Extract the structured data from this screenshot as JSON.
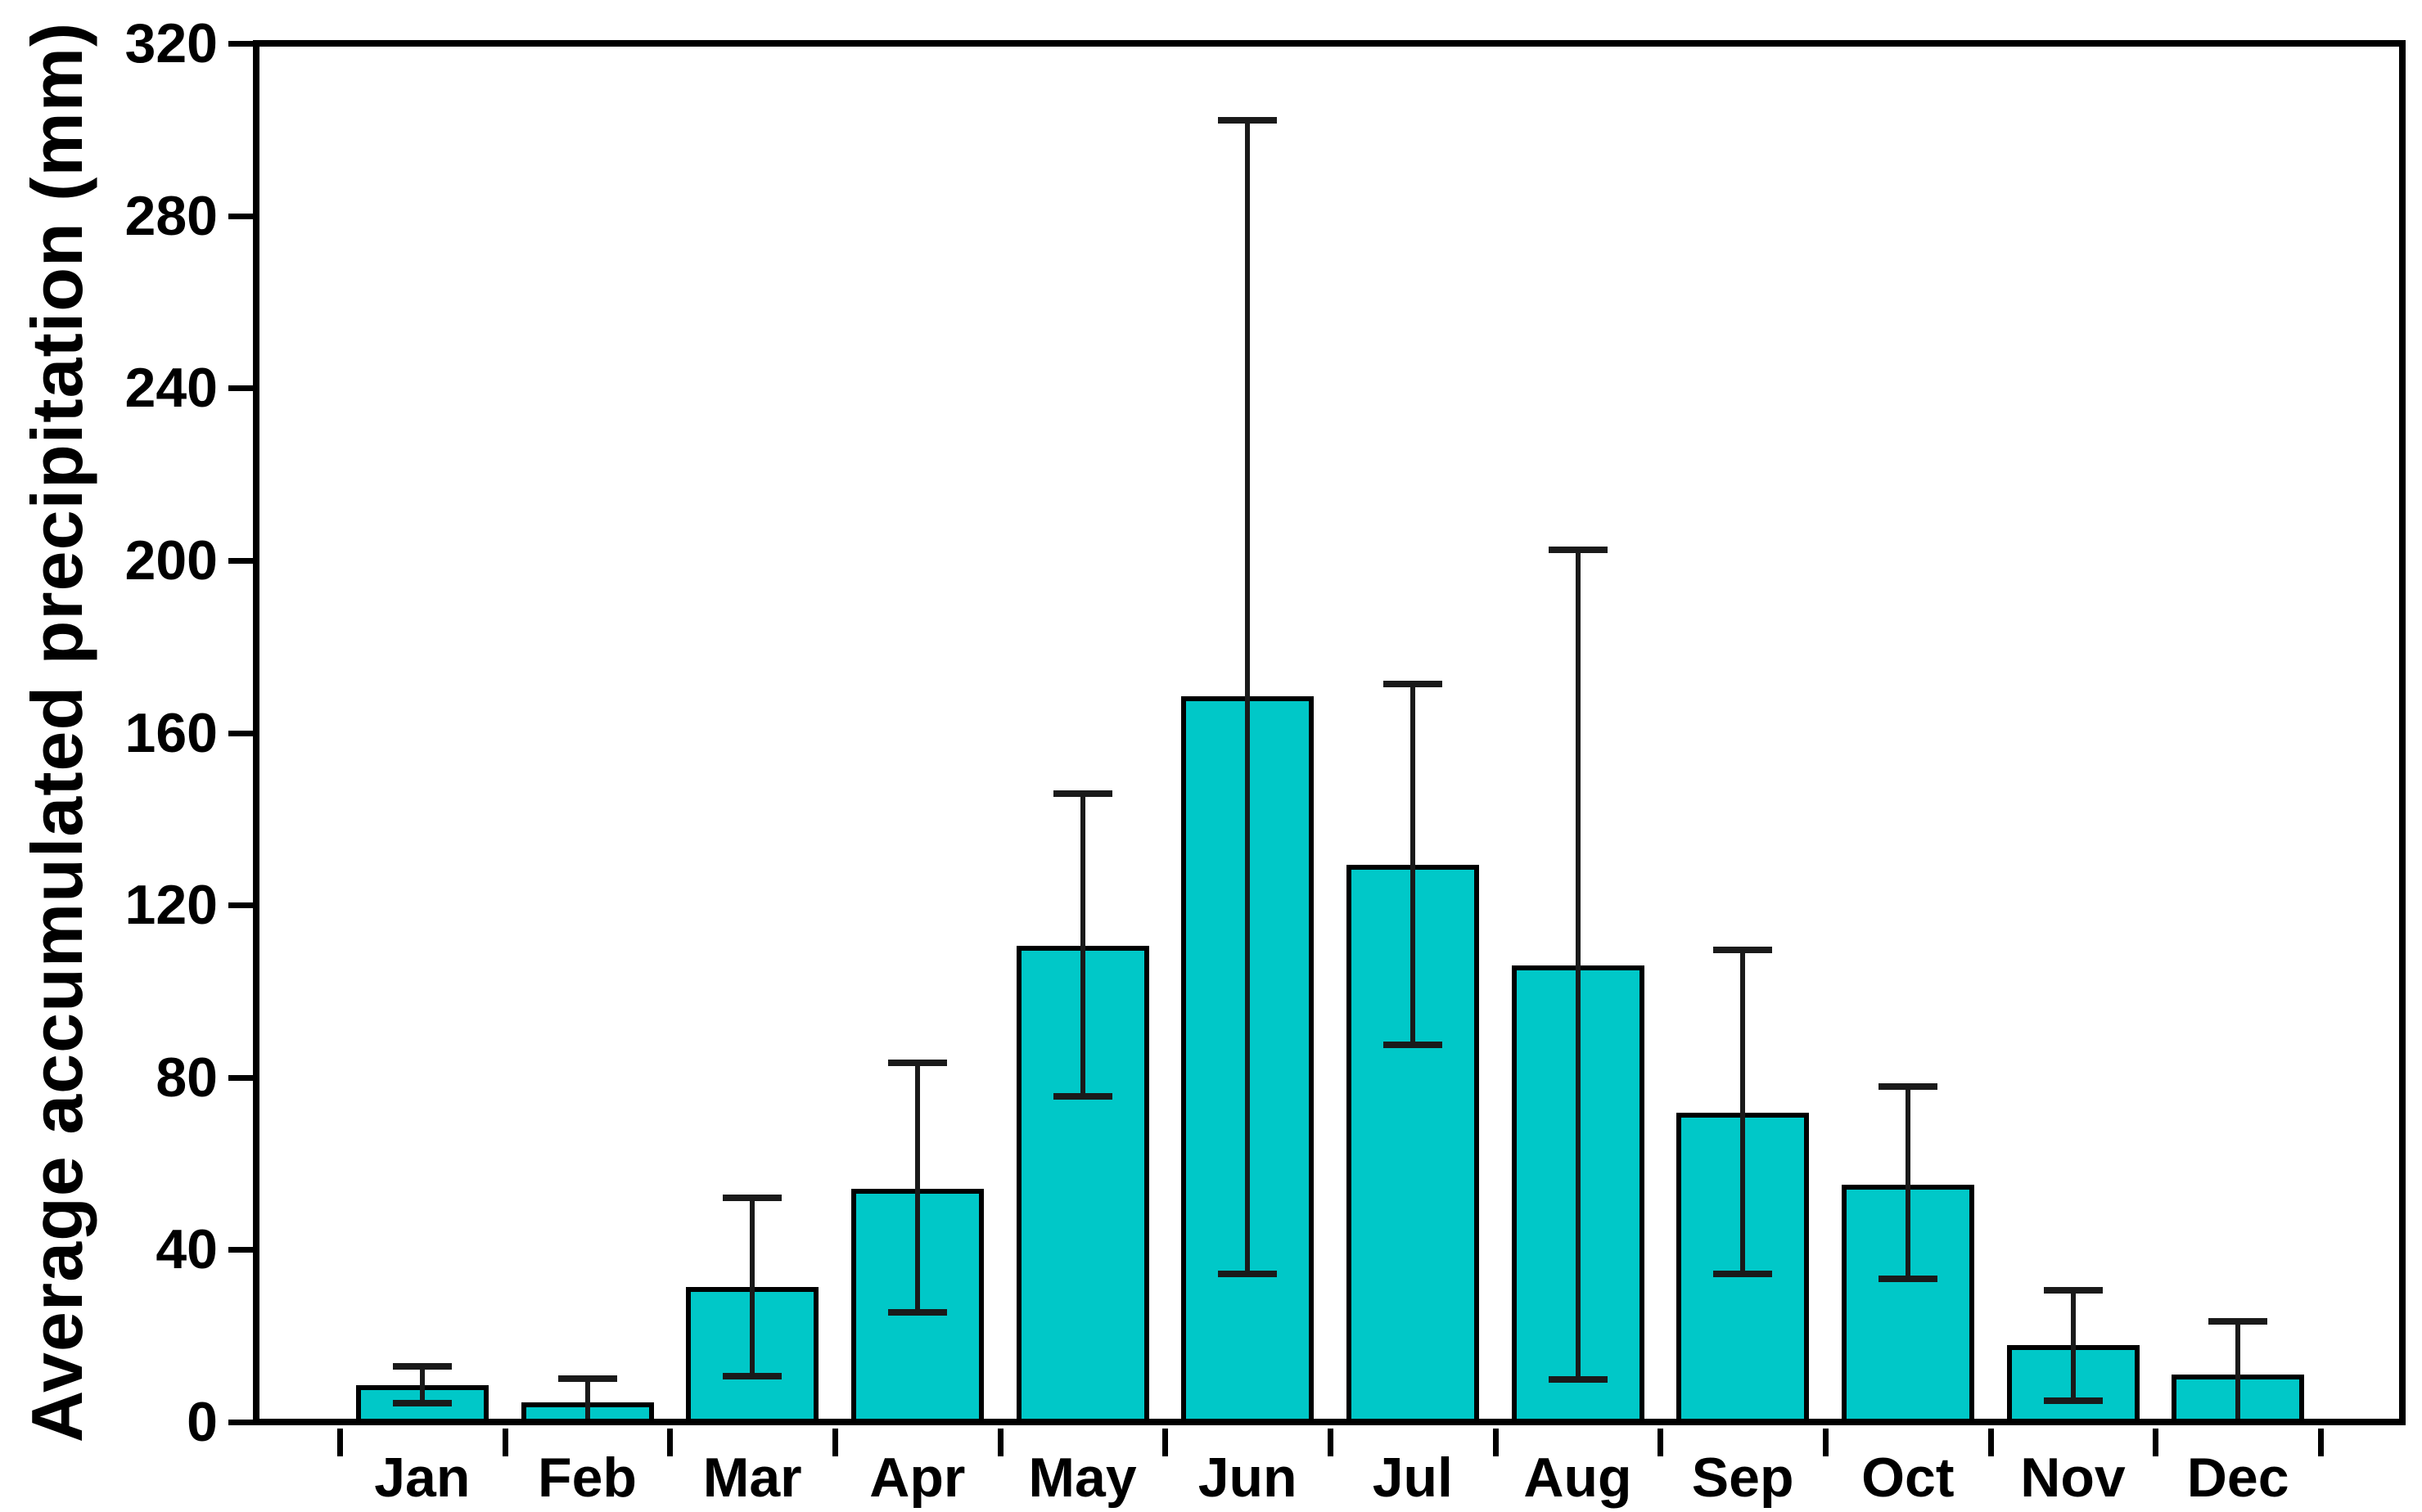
{
  "figure": {
    "background": "#ffffff",
    "text_color": "#000000"
  },
  "chart_data": {
    "type": "bar",
    "title": "",
    "xlabel": "",
    "ylabel": "Average accumulated precipitation (mm)",
    "categories": [
      "Jan",
      "Feb",
      "Mar",
      "Apr",
      "May",
      "Jun",
      "Jul",
      "Aug",
      "Sep",
      "Oct",
      "Nov",
      "Dec"
    ],
    "values": [
      8.5,
      4.6,
      31.3,
      54.1,
      110.5,
      168.4,
      129.3,
      106.0,
      71.8,
      55.1,
      17.9,
      11.0
    ],
    "error_bars": {
      "whisker_top": [
        12.9,
        10.1,
        52.0,
        83.4,
        145.9,
        302.2,
        171.3,
        202.4,
        109.6,
        77.9,
        30.6,
        23.4
      ],
      "whisker_bottom": [
        4.4,
        0.2,
        10.6,
        25.4,
        75.6,
        34.4,
        87.5,
        9.9,
        34.4,
        33.2,
        4.9,
        0.2
      ],
      "bottom_cap_visible": [
        true,
        false,
        true,
        true,
        true,
        true,
        true,
        true,
        true,
        true,
        true,
        false
      ]
    },
    "ylim": [
      0,
      320
    ],
    "y_ticks": [
      0,
      40,
      80,
      120,
      160,
      200,
      240,
      280,
      320
    ],
    "grid": false,
    "legend": null,
    "bar_color": "#00C8C8",
    "bar_border_color": "#000000",
    "error_bar_color": "#1a1a1a",
    "axis_color": "#000000"
  }
}
